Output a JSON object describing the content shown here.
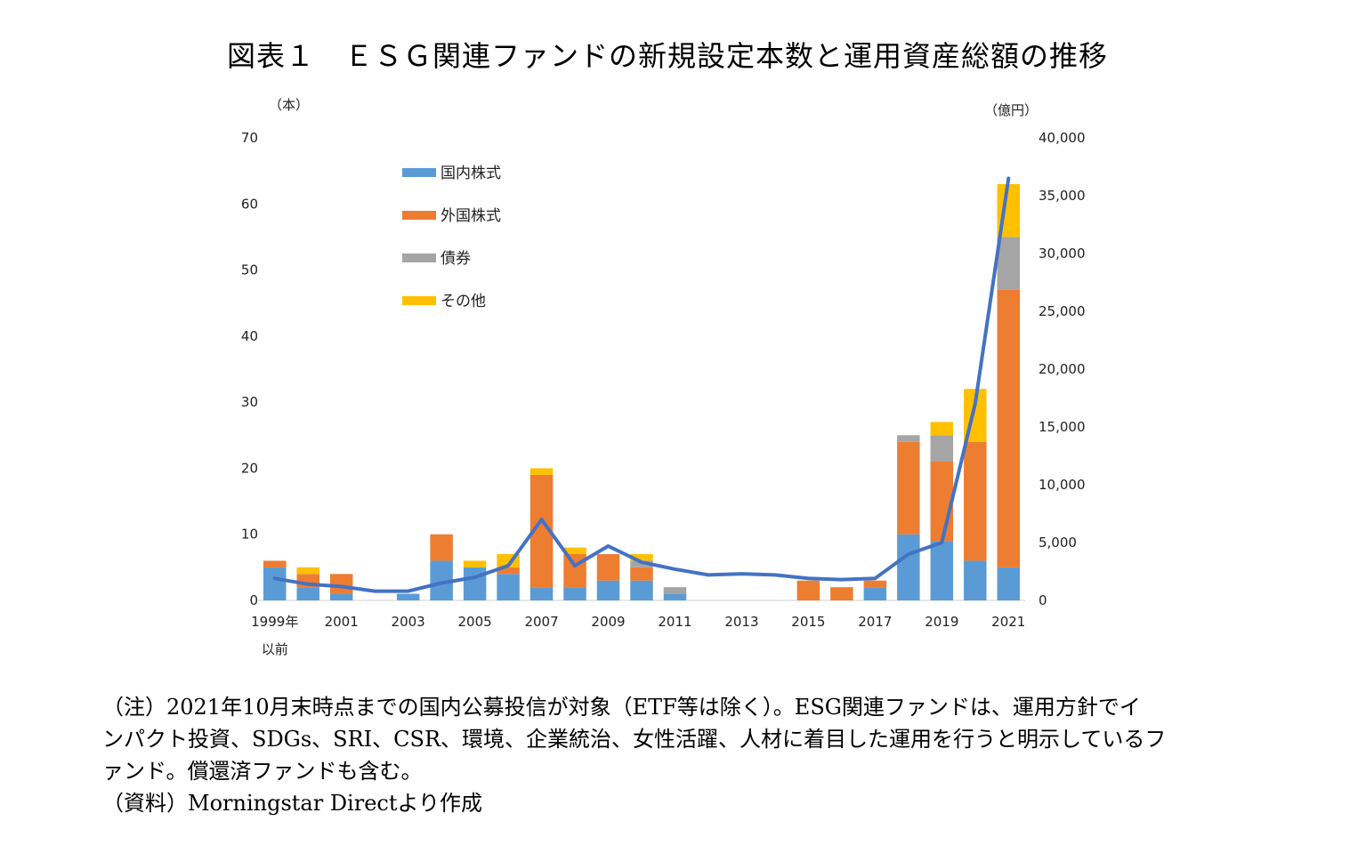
{
  "chart_data": {
    "type": "bar",
    "title": "図表１　ＥＳＧ関連ファンドの新規設定本数と運用資産総額の推移",
    "left_axis_unit": "（本）",
    "right_axis_unit": "（億円）",
    "ylim": [
      0,
      70
    ],
    "y2lim": [
      0,
      40000
    ],
    "y_ticks": [
      "0",
      "10",
      "20",
      "30",
      "40",
      "50",
      "60",
      "70"
    ],
    "y2_ticks": [
      "0",
      "5,000",
      "10,000",
      "15,000",
      "20,000",
      "25,000",
      "30,000",
      "35,000",
      "40,000"
    ],
    "categories": [
      "1999年以前",
      "2000",
      "2001",
      "2002",
      "2003",
      "2004",
      "2005",
      "2006",
      "2007",
      "2008",
      "2009",
      "2010",
      "2011",
      "2012",
      "2013",
      "2014",
      "2015",
      "2016",
      "2017",
      "2018",
      "2019",
      "2020",
      "2021"
    ],
    "tick_labels": [
      {
        "index": 0,
        "lines": [
          "1999年",
          "以前"
        ]
      },
      {
        "index": 2,
        "lines": [
          "2001"
        ]
      },
      {
        "index": 4,
        "lines": [
          "2003"
        ]
      },
      {
        "index": 6,
        "lines": [
          "2005"
        ]
      },
      {
        "index": 8,
        "lines": [
          "2007"
        ]
      },
      {
        "index": 10,
        "lines": [
          "2009"
        ]
      },
      {
        "index": 12,
        "lines": [
          "2011"
        ]
      },
      {
        "index": 14,
        "lines": [
          "2013"
        ]
      },
      {
        "index": 16,
        "lines": [
          "2015"
        ]
      },
      {
        "index": 18,
        "lines": [
          "2017"
        ]
      },
      {
        "index": 20,
        "lines": [
          "2019"
        ]
      },
      {
        "index": 22,
        "lines": [
          "2021"
        ]
      }
    ],
    "series": [
      {
        "name": "国内株式",
        "color": "#5B9BD5",
        "values": [
          5,
          2,
          1,
          0,
          1,
          6,
          5,
          4,
          2,
          2,
          3,
          3,
          1,
          0,
          0,
          0,
          0,
          0,
          2,
          10,
          9,
          6,
          5
        ]
      },
      {
        "name": "外国株式",
        "color": "#ED7D31",
        "values": [
          1,
          2,
          3,
          0,
          0,
          4,
          0,
          1,
          17,
          5,
          4,
          2,
          0,
          0,
          0,
          0,
          3,
          2,
          1,
          14,
          12,
          18,
          42
        ]
      },
      {
        "name": "債券",
        "color": "#A5A5A5",
        "values": [
          0,
          0,
          0,
          0,
          0,
          0,
          0,
          0,
          0,
          0,
          0,
          1,
          1,
          0,
          0,
          0,
          0,
          0,
          0,
          1,
          4,
          0,
          8
        ]
      },
      {
        "name": "その他",
        "color": "#FFC000",
        "values": [
          0,
          1,
          0,
          0,
          0,
          0,
          1,
          2,
          1,
          1,
          0,
          1,
          0,
          0,
          0,
          0,
          0,
          0,
          0,
          0,
          2,
          8,
          8
        ]
      }
    ],
    "line_series": {
      "axis": "right",
      "color": "#4472C4",
      "values": [
        1900,
        1400,
        1200,
        800,
        800,
        1500,
        2000,
        3000,
        7000,
        3000,
        4700,
        3300,
        2700,
        2200,
        2300,
        2200,
        1900,
        1800,
        1900,
        4000,
        5000,
        17000,
        36500
      ]
    },
    "legend_position": "top-left"
  },
  "notes": {
    "note_line1": "（注）2021年10月末時点までの国内公募投信が対象（ETF等は除く）。ESG関連ファンドは、運用方針でイ",
    "note_line2": "ンパクト投資、SDGs、SRI、CSR、環境、企業統治、女性活躍、人材に着目した運用を行うと明示しているフ",
    "note_line3": "ァンド。償還済ファンドも含む。",
    "source": "（資料）Morningstar Directより作成"
  }
}
